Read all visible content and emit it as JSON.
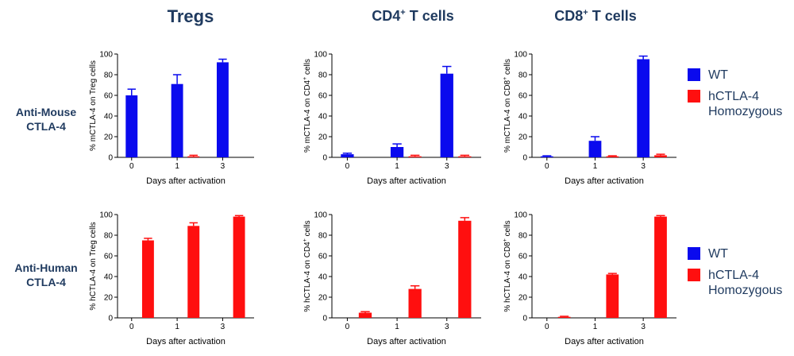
{
  "column_titles": {
    "tregs": "Tregs",
    "cd4_prefix": "CD4",
    "cd4_suffix": " T cells",
    "cd8_prefix": "CD8",
    "cd8_suffix": " T cells",
    "superscript": "+"
  },
  "row_labels": {
    "mouse_line1": "Anti-Mouse",
    "mouse_line2": "CTLA-4",
    "human_line1": "Anti-Human",
    "human_line2": "CTLA-4"
  },
  "legend": {
    "wt": "WT",
    "homo_line1": "hCTLA-4",
    "homo_line2": "Homozygous"
  },
  "colors": {
    "wt": "#0a0aee",
    "homo": "#ff0f0f",
    "title": "#1f3a5f"
  },
  "chart_data": [
    {
      "type": "bar",
      "xlabel": "Days after activation",
      "ylabel_prefix": "% mCTLA-4 on Treg cells",
      "ylabel_sup": "",
      "ylabel_suffix": "",
      "categories": [
        "0",
        "1",
        "3"
      ],
      "ylim": [
        0,
        100
      ],
      "yticks": [
        0,
        20,
        40,
        60,
        80,
        100
      ],
      "series": [
        {
          "name": "WT",
          "values": [
            60,
            71,
            92
          ],
          "errors": [
            6,
            9,
            3
          ]
        },
        {
          "name": "hCTLA-4 Homozygous",
          "values": [
            0,
            1,
            0
          ],
          "errors": [
            0,
            1,
            0
          ]
        }
      ]
    },
    {
      "type": "bar",
      "xlabel": "Days after activation",
      "ylabel_prefix": "% mCTLA-4 on CD4",
      "ylabel_sup": "+",
      "ylabel_suffix": " cells",
      "categories": [
        "0",
        "1",
        "3"
      ],
      "ylim": [
        0,
        100
      ],
      "yticks": [
        0,
        20,
        40,
        60,
        80,
        100
      ],
      "series": [
        {
          "name": "WT",
          "values": [
            3,
            10,
            81
          ],
          "errors": [
            1,
            3,
            7
          ]
        },
        {
          "name": "hCTLA-4 Homozygous",
          "values": [
            0,
            1,
            1
          ],
          "errors": [
            0,
            1,
            1
          ]
        }
      ]
    },
    {
      "type": "bar",
      "xlabel": "Days after activation",
      "ylabel_prefix": "% mCTLA-4 on CD8",
      "ylabel_sup": "+",
      "ylabel_suffix": " cells",
      "categories": [
        "0",
        "1",
        "3"
      ],
      "ylim": [
        0,
        100
      ],
      "yticks": [
        0,
        20,
        40,
        60,
        80,
        100
      ],
      "series": [
        {
          "name": "WT",
          "values": [
            1,
            16,
            95
          ],
          "errors": [
            0.5,
            4,
            3
          ]
        },
        {
          "name": "hCTLA-4 Homozygous",
          "values": [
            0,
            1,
            2
          ],
          "errors": [
            0,
            0.5,
            1
          ]
        }
      ]
    },
    {
      "type": "bar",
      "xlabel": "Days after activation",
      "ylabel_prefix": "% hCTLA-4 on Treg cells",
      "ylabel_sup": "",
      "ylabel_suffix": "",
      "categories": [
        "0",
        "1",
        "3"
      ],
      "ylim": [
        0,
        100
      ],
      "yticks": [
        0,
        20,
        40,
        60,
        80,
        100
      ],
      "series": [
        {
          "name": "WT",
          "values": [
            0,
            0,
            0
          ],
          "errors": [
            0,
            0,
            0
          ]
        },
        {
          "name": "hCTLA-4 Homozygous",
          "values": [
            75,
            89,
            98
          ],
          "errors": [
            2,
            3,
            1
          ]
        }
      ]
    },
    {
      "type": "bar",
      "xlabel": "Days after activation",
      "ylabel_prefix": "% hCTLA-4 on CD4",
      "ylabel_sup": "+",
      "ylabel_suffix": " cells",
      "categories": [
        "0",
        "1",
        "3"
      ],
      "ylim": [
        0,
        100
      ],
      "yticks": [
        0,
        20,
        40,
        60,
        80,
        100
      ],
      "series": [
        {
          "name": "WT",
          "values": [
            0,
            0,
            0
          ],
          "errors": [
            0,
            0,
            0
          ]
        },
        {
          "name": "hCTLA-4 Homozygous",
          "values": [
            5,
            28,
            94
          ],
          "errors": [
            1,
            3,
            3
          ]
        }
      ]
    },
    {
      "type": "bar",
      "xlabel": "Days after activation",
      "ylabel_prefix": "% hCTLA-4 on CD8",
      "ylabel_sup": "+",
      "ylabel_suffix": " cells",
      "categories": [
        "0",
        "1",
        "3"
      ],
      "ylim": [
        0,
        100
      ],
      "yticks": [
        0,
        20,
        40,
        60,
        80,
        100
      ],
      "series": [
        {
          "name": "WT",
          "values": [
            0,
            0,
            0
          ],
          "errors": [
            0,
            0,
            0
          ]
        },
        {
          "name": "hCTLA-4 Homozygous",
          "values": [
            1,
            42,
            98
          ],
          "errors": [
            0.5,
            1,
            1
          ]
        }
      ]
    }
  ]
}
